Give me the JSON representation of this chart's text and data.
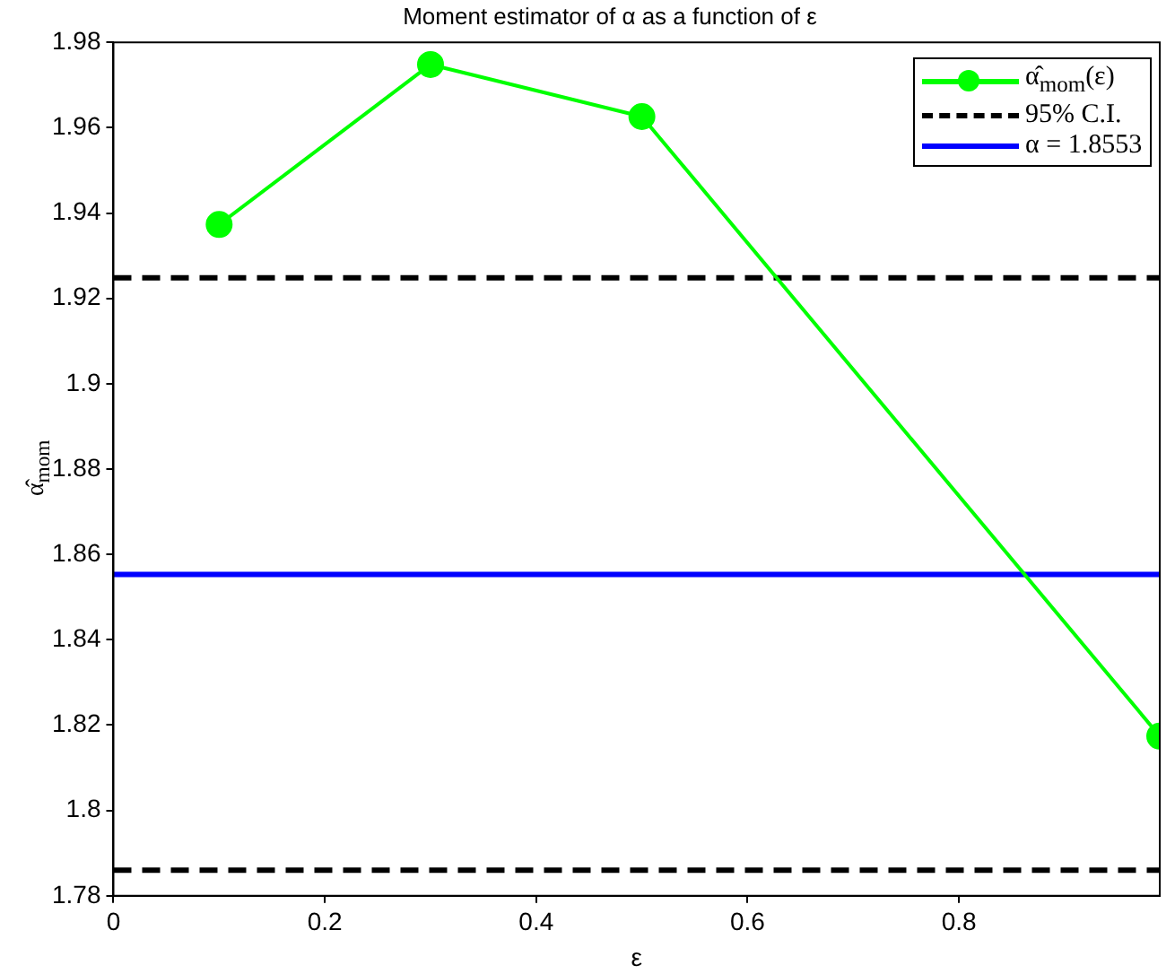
{
  "chart_data": {
    "type": "line",
    "title": "Moment estimator of α as a function of ε",
    "xlabel": "ε",
    "ylabel": "α̂$_{mom}$",
    "x": [
      0.1,
      0.3,
      0.5,
      0.99
    ],
    "series": [
      {
        "name": "α̂$_{mom}$(ε)",
        "color": "#00ff00",
        "values": [
          1.9373,
          1.9748,
          1.9626,
          1.8174
        ]
      }
    ],
    "xlim": [
      0,
      0.99
    ],
    "xticks": [
      0,
      0.2,
      0.4,
      0.6,
      0.8
    ],
    "ylim": [
      1.78,
      1.98
    ],
    "yticks": [
      1.78,
      1.8,
      1.82,
      1.84,
      1.86,
      1.88,
      1.9,
      1.92,
      1.94,
      1.96,
      1.98
    ],
    "ref_lines": [
      {
        "axis": "y",
        "value": 1.9248,
        "label": "95% C.I.",
        "color": "#000000",
        "line_style": "dashed"
      },
      {
        "axis": "y",
        "value": 1.786,
        "label": null,
        "color": "#000000",
        "line_style": "dashed"
      },
      {
        "axis": "y",
        "value": 1.8553,
        "label": "α = 1.8553",
        "color": "#0000ff",
        "line_style": "solid"
      }
    ],
    "marker": "circle",
    "line_style": "solid",
    "grid": false,
    "legend": "top right"
  }
}
